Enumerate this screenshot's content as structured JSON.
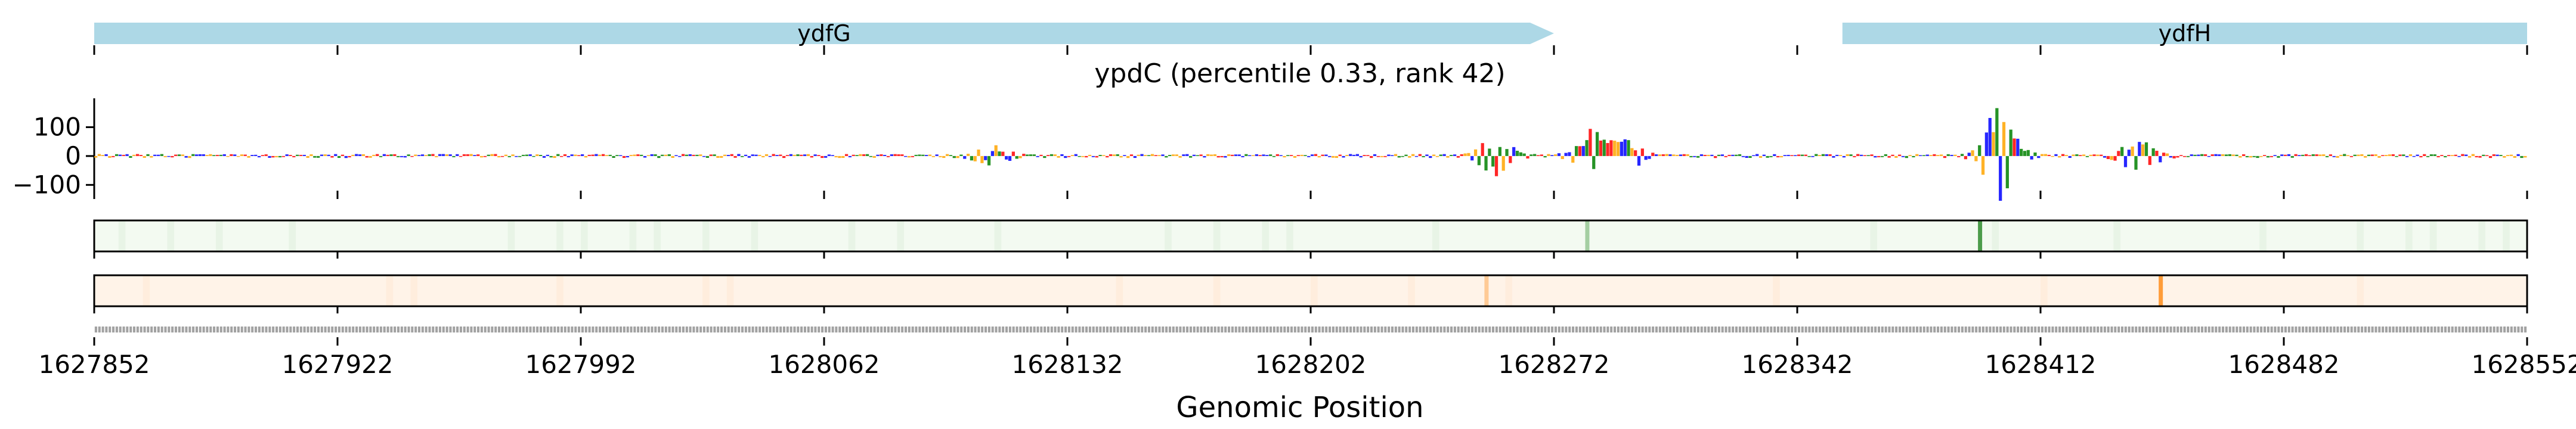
{
  "chart_data": {
    "type": "sequence-track",
    "title": "ypdC (percentile 0.33, rank 42)",
    "xlabel": "Genomic Position",
    "xlim": [
      1627852,
      1628552
    ],
    "x_ticks": [
      1627852,
      1627922,
      1627992,
      1628062,
      1628132,
      1628202,
      1628272,
      1628342,
      1628412,
      1628482,
      1628552
    ],
    "x_tick_labels": [
      "1627852",
      "1627922",
      "1627992",
      "1628062",
      "1628132",
      "1628202",
      "1628272",
      "1628342",
      "1628412",
      "1628482",
      "1628552"
    ],
    "genes": [
      {
        "name": "ydfG",
        "start": 1627852,
        "end": 1628272,
        "strand": "+",
        "color": "#add8e6"
      },
      {
        "name": "ydfH",
        "start": 1628355,
        "end": 1628552,
        "strand": "+",
        "color": "#add8e6"
      }
    ],
    "attribution": {
      "ylim": [
        -120,
        200
      ],
      "y_ticks": [
        100,
        0,
        -100
      ],
      "y_tick_labels": [
        "100",
        "0",
        "−100"
      ],
      "base_colors": {
        "A": "#008000",
        "C": "#0000ff",
        "G": "#ffa500",
        "T": "#ff0000"
      },
      "peaks": [
        {
          "position": 1628110,
          "height": 30
        },
        {
          "position": 1628255,
          "height": 60
        },
        {
          "position": 1628283,
          "height": 80
        },
        {
          "position": 1628292,
          "height": 45
        },
        {
          "position": 1628400,
          "height": 150
        },
        {
          "position": 1628440,
          "height": 55
        }
      ]
    },
    "heatmap_tracks": [
      {
        "name": "track-1",
        "color": "#2e8b2e",
        "highlights": [
          1628281,
          1628394
        ]
      },
      {
        "name": "track-2",
        "color": "#ff8c1a",
        "highlights": [
          1628252,
          1628446
        ]
      }
    ],
    "grid": false
  }
}
